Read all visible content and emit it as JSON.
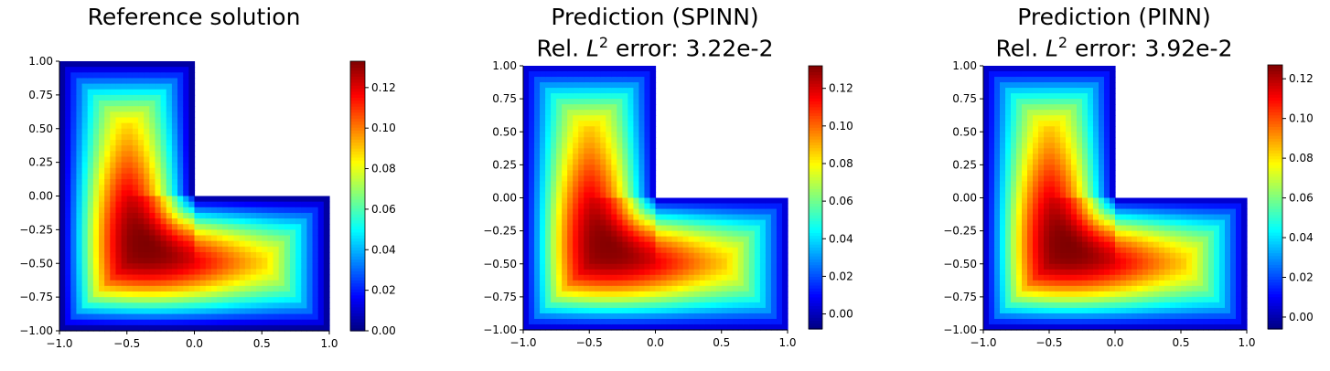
{
  "colormap": [
    "#00007f",
    "#0000ff",
    "#007fff",
    "#00ffff",
    "#7fff7f",
    "#ffff00",
    "#ff7f00",
    "#ff0000",
    "#7f0000"
  ],
  "chart_data": [
    {
      "type": "heatmap",
      "title": "Reference solution",
      "subtitle": "",
      "domain": "L-shaped region: [-1,1]x[-1,1] minus (0,1]x(0,1]",
      "xlim": [
        -1.0,
        1.0
      ],
      "ylim": [
        -1.0,
        1.0
      ],
      "xticks": [
        "−1.0",
        "−0.5",
        "0.0",
        "0.5",
        "1.0"
      ],
      "yticks": [
        "1.00",
        "0.75",
        "0.50",
        "0.25",
        "0.00",
        "−0.25",
        "−0.50",
        "−0.75",
        "−1.00"
      ],
      "colorbar": {
        "min": 0.0,
        "max": 0.133,
        "ticks": [
          "0.00",
          "0.02",
          "0.04",
          "0.06",
          "0.08",
          "0.10",
          "0.12"
        ]
      },
      "peak": {
        "x": -0.35,
        "y": -0.35,
        "value": 0.133
      }
    },
    {
      "type": "heatmap",
      "title": "Prediction (SPINN)",
      "subtitle": {
        "prefix": "Rel. ",
        "symbol": "L",
        "sup": "2",
        "suffix": " error: 3.22e-2"
      },
      "domain": "L-shaped region: [-1,1]x[-1,1] minus (0,1]x(0,1]",
      "xlim": [
        -1.0,
        1.0
      ],
      "ylim": [
        -1.0,
        1.0
      ],
      "xticks": [
        "−1.0",
        "−0.5",
        "0.0",
        "0.5",
        "1.0"
      ],
      "yticks": [
        "1.00",
        "0.75",
        "0.50",
        "0.25",
        "0.00",
        "−0.25",
        "−0.50",
        "−0.75",
        "−1.00"
      ],
      "colorbar": {
        "min": -0.008,
        "max": 0.132,
        "ticks": [
          "0.00",
          "0.02",
          "0.04",
          "0.06",
          "0.08",
          "0.10",
          "0.12"
        ]
      },
      "peak": {
        "x": -0.35,
        "y": -0.35,
        "value": 0.131
      }
    },
    {
      "type": "heatmap",
      "title": "Prediction (PINN)",
      "subtitle": {
        "prefix": "Rel. ",
        "symbol": "L",
        "sup": "2",
        "suffix": " error: 3.92e-2"
      },
      "domain": "L-shaped region: [-1,1]x[-1,1] minus (0,1]x(0,1]",
      "xlim": [
        -1.0,
        1.0
      ],
      "ylim": [
        -1.0,
        1.0
      ],
      "xticks": [
        "−1.0",
        "−0.5",
        "0.0",
        "0.5",
        "1.0"
      ],
      "yticks": [
        "1.00",
        "0.75",
        "0.50",
        "0.25",
        "0.00",
        "−0.25",
        "−0.50",
        "−0.75",
        "−1.00"
      ],
      "colorbar": {
        "min": -0.006,
        "max": 0.127,
        "ticks": [
          "0.00",
          "0.02",
          "0.04",
          "0.06",
          "0.08",
          "0.10",
          "0.12"
        ]
      },
      "peak": {
        "x": -0.35,
        "y": -0.35,
        "value": 0.127
      }
    }
  ]
}
